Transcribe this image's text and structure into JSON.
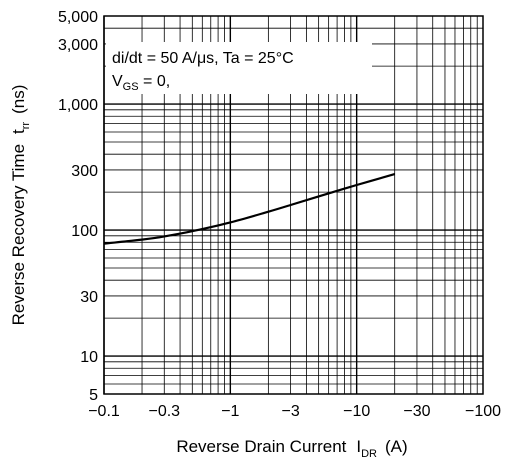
{
  "chart_data": {
    "type": "line",
    "title": "",
    "xlabel": "Reverse Drain Current",
    "xlabel_symbol": "I",
    "xlabel_symbol_sub": "DR",
    "xlabel_unit": "(A)",
    "ylabel": "Reverse Recovery Time",
    "ylabel_symbol": "t",
    "ylabel_symbol_sub": "rr",
    "ylabel_unit": "(ns)",
    "x_scale": "log",
    "y_scale": "log",
    "x_axis_reversed_sign": true,
    "xlim": [
      -0.1,
      -100
    ],
    "ylim": [
      5,
      5000
    ],
    "grid": true,
    "x_ticks": [
      {
        "value": -0.1,
        "label": "−0.1"
      },
      {
        "value": -0.3,
        "label": "−0.3"
      },
      {
        "value": -1,
        "label": "−1"
      },
      {
        "value": -3,
        "label": "−3"
      },
      {
        "value": -10,
        "label": "−10"
      },
      {
        "value": -30,
        "label": "−30"
      },
      {
        "value": -100,
        "label": "−100"
      }
    ],
    "y_ticks": [
      {
        "value": 5,
        "label": "5"
      },
      {
        "value": 10,
        "label": "10"
      },
      {
        "value": 30,
        "label": "30"
      },
      {
        "value": 100,
        "label": "100"
      },
      {
        "value": 300,
        "label": "300"
      },
      {
        "value": 1000,
        "label": "1,000"
      },
      {
        "value": 3000,
        "label": "3,000"
      },
      {
        "value": 5000,
        "label": "5,000"
      }
    ],
    "annotations": {
      "condition_line1": "di/dt = 50 A/μs, Ta = 25°C",
      "condition_line2_symbol": "V",
      "condition_line2_sub": "GS",
      "condition_line2_rest": " = 0,"
    },
    "series": [
      {
        "x": [
          -0.1,
          -0.2,
          -0.3,
          -0.5,
          -1,
          -2,
          -3,
          -5,
          -10,
          -20
        ],
        "y": [
          78,
          84,
          89,
          98,
          115,
          140,
          158,
          185,
          228,
          278
        ]
      }
    ]
  }
}
